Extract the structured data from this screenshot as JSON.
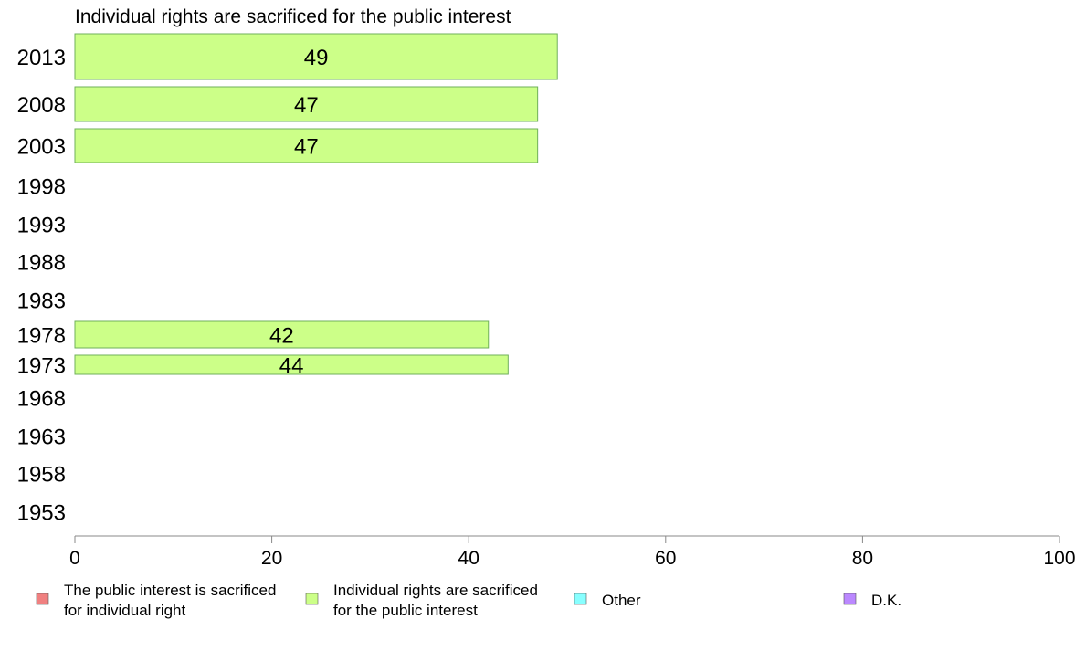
{
  "chart_data": {
    "type": "bar",
    "orientation": "horizontal",
    "title": "Individual rights are sacrificed for the public interest",
    "categories": [
      "2013",
      "2008",
      "2003",
      "1998",
      "1993",
      "1988",
      "1983",
      "1978",
      "1973",
      "1968",
      "1963",
      "1958",
      "1953"
    ],
    "series": [
      {
        "name": "Individual rights are sacrificed for the public interest",
        "values": [
          49,
          47,
          47,
          null,
          null,
          null,
          null,
          42,
          44,
          null,
          null,
          null,
          null
        ],
        "color": "#ccff88"
      }
    ],
    "xlim": [
      0,
      100
    ],
    "xticks": [
      0,
      20,
      40,
      60,
      80,
      100
    ],
    "bar_color": "#ccff88",
    "bar_stroke": "#6fb05a",
    "legend": {
      "placement": "bottom",
      "items": [
        {
          "lines": [
            "The public interest is sacrificed",
            "for individual right"
          ],
          "color": "#f08080"
        },
        {
          "lines": [
            "Individual rights are sacrificed",
            "for the public interest"
          ],
          "color": "#ccff88"
        },
        {
          "lines": [
            "Other"
          ],
          "color": "#88ffff"
        },
        {
          "lines": [
            "D.K."
          ],
          "color": "#bb88ff"
        }
      ]
    }
  }
}
